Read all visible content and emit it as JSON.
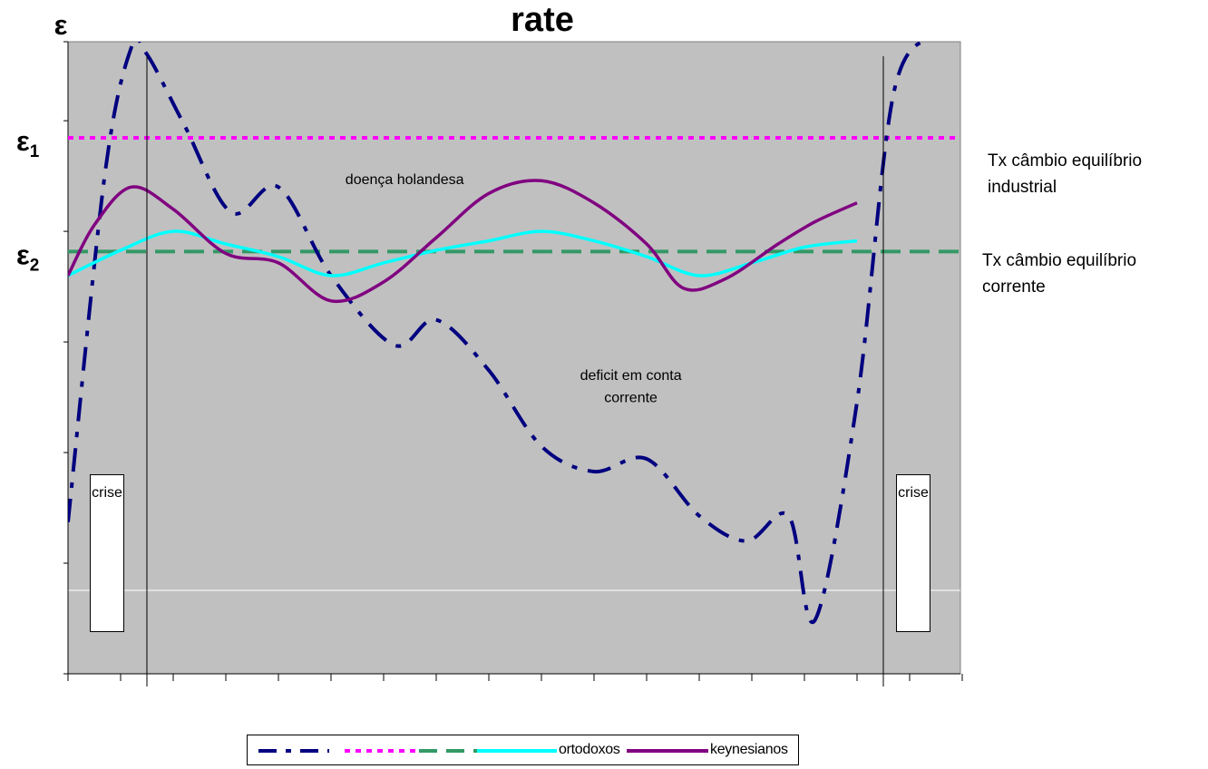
{
  "chart_data": {
    "type": "line",
    "title": "rate",
    "ylabel": "ε",
    "y_markers": [
      {
        "label_main": "ε",
        "label_sub": "1",
        "series": "Tx câmbio equilíbrio industrial"
      },
      {
        "label_main": "ε",
        "label_sub": "2",
        "series": "Tx câmbio equilíbrio corrente"
      }
    ],
    "x": [
      0,
      1,
      2,
      3,
      4,
      5,
      6,
      7,
      8,
      9,
      10,
      11,
      12,
      13,
      14,
      15,
      16,
      17
    ],
    "xlim": [
      0,
      17
    ],
    "ylim": [
      0,
      100
    ],
    "y_ticks": [
      0,
      17.5,
      35,
      52.5,
      70,
      87.5,
      100
    ],
    "grid": false,
    "legend_position": "bottom",
    "reference_lines": [
      {
        "name": "Tx câmbio equilíbrio industrial",
        "value": 84.8,
        "color": "#ff00ff",
        "style": "dotted"
      },
      {
        "name": "Tx câmbio equilíbrio corrente",
        "value": 66.8,
        "color": "#339966",
        "style": "dashed"
      }
    ],
    "series": [
      {
        "name": "",
        "color": "#000080",
        "style": "dashdot",
        "x": [
          0,
          0.7,
          1.2,
          1.5,
          2.2,
          3.1,
          4.0,
          5.0,
          6.2,
          7.0,
          8.0,
          9.0,
          10.0,
          11.0,
          12.0,
          12.9,
          13.7,
          14.2,
          15.0,
          15.7,
          16.5
        ],
        "y": [
          24,
          79,
          99,
          98,
          87,
          73,
          77,
          63,
          52,
          56,
          48,
          36,
          32,
          34,
          25,
          21,
          25,
          8.5,
          43,
          92,
          101
        ]
      },
      {
        "name": "ortodoxos",
        "color": "#00ffff",
        "style": "solid",
        "x": [
          0,
          1,
          2,
          3,
          4,
          5,
          6,
          7,
          8,
          9,
          10,
          11,
          12,
          13,
          14,
          15
        ],
        "y": [
          63,
          67,
          70,
          68,
          66,
          63,
          65,
          67,
          68.5,
          70,
          68.5,
          66,
          63,
          65,
          67.5,
          68.5
        ]
      },
      {
        "name": "keynesianos",
        "color": "#800080",
        "style": "solid",
        "x": [
          0,
          0.5,
          1.2,
          2.0,
          3.0,
          4.0,
          5.0,
          6.0,
          7.0,
          8.0,
          9.0,
          10.0,
          11.0,
          11.7,
          12.5,
          13.5,
          14.2,
          15.0
        ],
        "y": [
          63,
          71,
          77,
          73.5,
          66.5,
          65,
          59,
          62,
          69,
          76,
          78,
          74.5,
          68,
          61,
          62.5,
          68,
          71.5,
          74.5
        ]
      }
    ],
    "annotations": [
      {
        "text": "doença holandesa",
        "x": 6.4,
        "y": 77.5
      },
      {
        "text": "deficit em conta",
        "x": 10.7,
        "y": 46.5
      },
      {
        "text": "corrente",
        "x": 10.7,
        "y": 43
      }
    ],
    "vertical_markers": [
      {
        "x": 1.5,
        "label": "crise"
      },
      {
        "x": 15.5,
        "label": "crise"
      }
    ]
  },
  "side_labels": {
    "industrial": "Tx câmbio equilíbrio\nindustrial",
    "corrente": "Tx câmbio equilíbrio\ncorrente"
  }
}
